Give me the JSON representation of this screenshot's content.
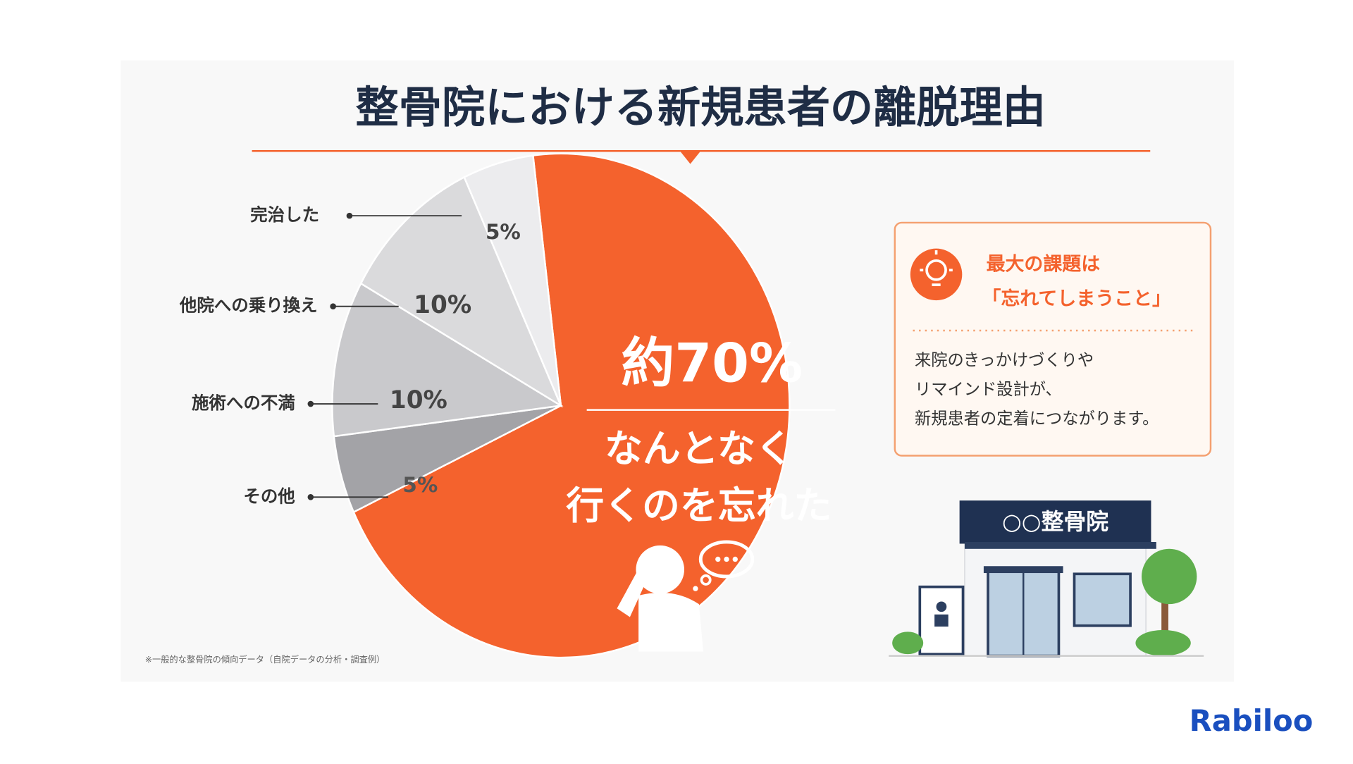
{
  "chart_data": {
    "type": "pie",
    "title": "整骨院における新規患者の離脱理由",
    "categories": [
      "なんとなく\n行くのを忘れた",
      "その他",
      "施術への不満",
      "他院への乗り換え",
      "完治した"
    ],
    "values": [
      70,
      5,
      10,
      10,
      5
    ],
    "value_labels": [
      "約70%",
      "5%",
      "10%",
      "10%",
      "5%"
    ],
    "colors": [
      "#f4622d",
      "#a3a3a7",
      "#c9c9cc",
      "#dadadc",
      "#ececee"
    ]
  },
  "callout": {
    "heading": [
      "最大の課題は",
      "「忘れてしまうこと」"
    ],
    "body": [
      "来院のきっかけづくりや",
      "リマインド設計が、",
      "新規患者の定着につながります。"
    ]
  },
  "illustration": {
    "sign": "○○整骨院"
  },
  "footnote": "※一般的な整骨院の傾向データ（自院データの分析・調査例）",
  "brand": "Rabiloo"
}
